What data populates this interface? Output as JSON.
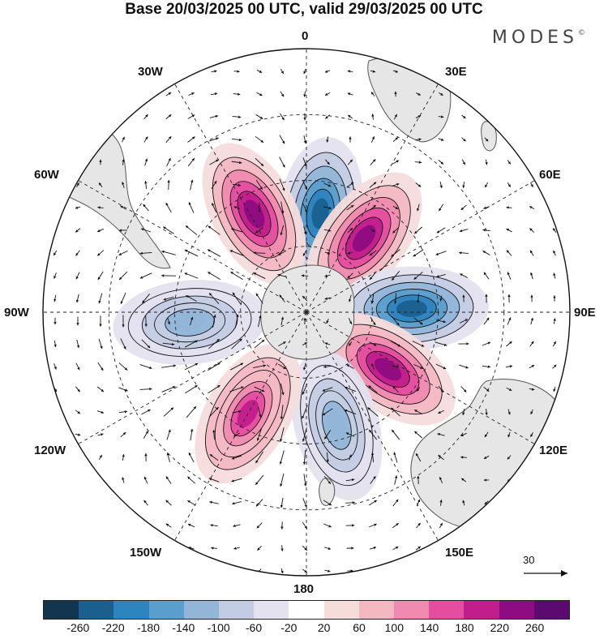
{
  "title": "Base 20/03/2025 00 UTC, valid 29/03/2025 00 UTC",
  "logo": {
    "text": "MODES",
    "mark": "©"
  },
  "longitude_labels": [
    "0",
    "30E",
    "60E",
    "90E",
    "120E",
    "150E",
    "180",
    "150W",
    "120W",
    "90W",
    "60W",
    "30W"
  ],
  "vector_scale": {
    "label": "30"
  },
  "colorbar": {
    "colors": [
      "#12364f",
      "#1a5f8e",
      "#2d84bf",
      "#5a9ecd",
      "#92b5d8",
      "#c3cce4",
      "#e4e2ef",
      "#ffffff",
      "#f7dcdc",
      "#f4b8c3",
      "#f08ab0",
      "#e44da0",
      "#c21d8c",
      "#8e0c81",
      "#5b0a6f"
    ],
    "tick_labels": [
      "-260",
      "-220",
      "-180",
      "-140",
      "-100",
      "-60",
      "-20",
      "20",
      "60",
      "100",
      "140",
      "180",
      "220",
      "260"
    ]
  },
  "anomaly_blobs": [
    {
      "lon": 8,
      "lat_from_pole": 34,
      "value": -260,
      "sign": "negative"
    },
    {
      "lon": 38,
      "lat_from_pole": 32,
      "value": 240,
      "sign": "positive"
    },
    {
      "lon": 88,
      "lat_from_pole": 36,
      "value": -260,
      "sign": "negative"
    },
    {
      "lon": 125,
      "lat_from_pole": 34,
      "value": 240,
      "sign": "positive"
    },
    {
      "lon": 165,
      "lat_from_pole": 40,
      "value": -140,
      "sign": "negative"
    },
    {
      "lon": -150,
      "lat_from_pole": 40,
      "value": 180,
      "sign": "positive"
    },
    {
      "lon": -95,
      "lat_from_pole": 40,
      "value": -140,
      "sign": "negative"
    },
    {
      "lon": -28,
      "lat_from_pole": 38,
      "value": 220,
      "sign": "positive"
    }
  ],
  "colors": {
    "land": "#e6e6e6",
    "coast": "#555555",
    "grid": "#222222",
    "arrows": "#111111"
  }
}
